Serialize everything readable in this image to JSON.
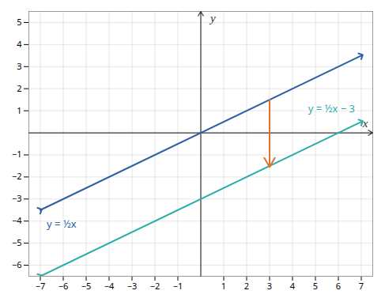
{
  "chart_data": {
    "type": "line",
    "xlabel": "x",
    "ylabel": "y",
    "xlim": [
      -7.5,
      7.5
    ],
    "ylim": [
      -6.5,
      5.5
    ],
    "xticks": [
      -7,
      -6,
      -5,
      -4,
      -3,
      -2,
      -1,
      1,
      2,
      3,
      4,
      5,
      6,
      7
    ],
    "yticks": [
      -6,
      -5,
      -4,
      -3,
      -2,
      -1,
      1,
      2,
      3,
      4,
      5
    ],
    "grid": true,
    "x": [
      -7,
      7
    ],
    "series": [
      {
        "name": "y = ½x",
        "color": "#2E5FA3",
        "values": [
          -3.5,
          3.5
        ]
      },
      {
        "name": "y = ½x − 3",
        "color": "#2AACAA",
        "values": [
          -6.5,
          0.5
        ]
      }
    ],
    "arrow": {
      "x": 3.0,
      "y_start": 1.5,
      "y_end": -1.55,
      "color": "#E07030"
    }
  }
}
